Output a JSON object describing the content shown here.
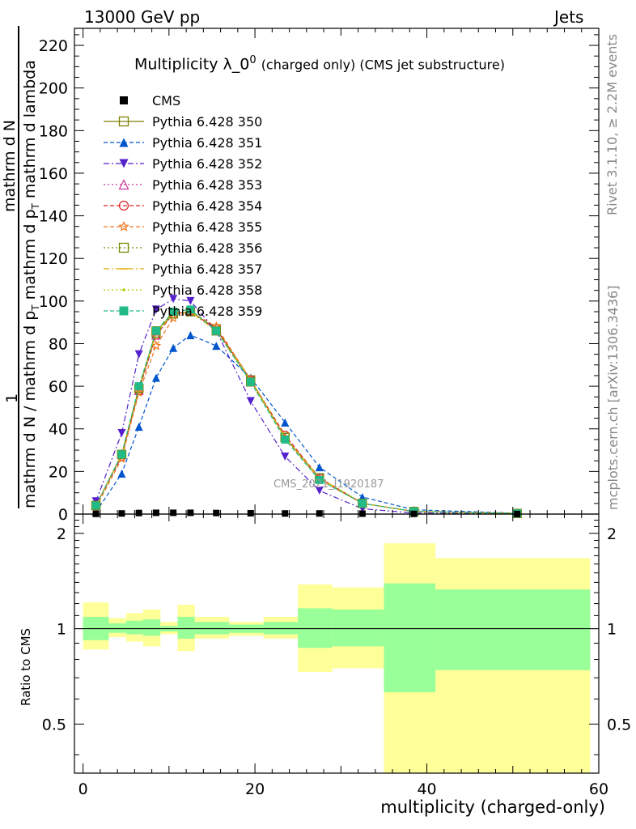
{
  "header": {
    "left": "13000 GeV pp",
    "right": "Jets"
  },
  "side_labels": {
    "rivet": "Rivet 3.1.10, ≥ 2.2M events",
    "mcplots": "mcplots.cern.ch [arXiv:1306.3436]"
  },
  "titles": {
    "plot_main": "Multiplicity λ_0",
    "plot_sup": "0",
    "plot_small": "(charged only) (CMS jet substructure)",
    "y_upper_num": "1",
    "y_upper_den": "mathrm d N / mathrm d p",
    "y_upper_den_tail": "mathrm d p",
    "y_upper_den_sub": "T",
    "y_upper_den_end": "mathrm d lambda",
    "y_upper_line2a": "mathrm d",
    "y_upper_line2b": "N",
    "y_ratio": "Ratio to CMS",
    "x_axis": "multiplicity (charged-only)",
    "ref_name": "CMS_2021_I1920187"
  },
  "chart_data": {
    "type": "line",
    "x_range": [
      -1,
      60
    ],
    "upper_ylim": [
      0,
      228
    ],
    "ratio_ylim": [
      0.35,
      2.3
    ],
    "ratio_log_scale": true,
    "x_ticks": [
      0,
      20,
      40,
      60
    ],
    "upper_y_ticks": [
      0,
      20,
      40,
      60,
      80,
      100,
      120,
      140,
      160,
      180,
      200,
      220
    ],
    "ratio_y_ticks": [
      0.5,
      1,
      2
    ],
    "legend_position": "top-left",
    "x": [
      1.5,
      4.5,
      6.5,
      8.5,
      10.5,
      12.5,
      15.5,
      19.5,
      23.5,
      27.5,
      32.5,
      38.5,
      50.5
    ],
    "bin_edges": [
      0,
      3,
      5,
      7,
      9,
      11,
      13,
      17,
      21,
      25,
      29,
      35,
      41,
      59
    ],
    "reference": {
      "name": "CMS",
      "color": "#000000",
      "values": [
        0.1,
        0.3,
        0.5,
        0.6,
        0.6,
        0.6,
        0.5,
        0.4,
        0.3,
        0.3,
        0.2,
        0.1,
        0.05
      ]
    },
    "series": [
      {
        "name": "Pythia 6.428 350",
        "color": "#808000",
        "marker": "square-open",
        "dash": "solid",
        "values": [
          4,
          28,
          59,
          86,
          94,
          95,
          87,
          63,
          36,
          17,
          5,
          1.2,
          0.3
        ]
      },
      {
        "name": "Pythia 6.428 351",
        "color": "#0055cc",
        "marker": "triangle-up",
        "dash": "dash",
        "values": [
          1,
          19,
          41,
          64,
          78,
          84,
          79,
          64,
          43,
          22,
          8,
          2,
          0.4
        ]
      },
      {
        "name": "Pythia 6.428 352",
        "color": "#5522cc",
        "marker": "triangle-down",
        "dash": "dashdot",
        "values": [
          6,
          38,
          75,
          96,
          101,
          100,
          86,
          53,
          27,
          11,
          2.5,
          0.5,
          0.1
        ]
      },
      {
        "name": "Pythia 6.428 353",
        "color": "#cc3399",
        "marker": "triangle-up-open",
        "dash": "dot",
        "values": [
          4,
          28,
          58,
          84,
          94,
          95,
          86,
          63,
          36,
          17,
          5,
          1.2,
          0.3
        ]
      },
      {
        "name": "Pythia 6.428 354",
        "color": "#dd2222",
        "marker": "circle-open",
        "dash": "dash",
        "values": [
          4,
          27,
          58,
          84,
          94,
          95,
          87,
          63,
          37,
          17,
          5,
          1.2,
          0.3
        ]
      },
      {
        "name": "Pythia 6.428 355",
        "color": "#ee7722",
        "marker": "star-open",
        "dash": "dash",
        "values": [
          3,
          26,
          57,
          79,
          92,
          95,
          88,
          63,
          36,
          16,
          5,
          1.2,
          0.3
        ]
      },
      {
        "name": "Pythia 6.428 356",
        "color": "#778800",
        "marker": "square-open",
        "dash": "dot",
        "values": [
          4,
          28,
          59,
          85,
          94,
          95,
          86,
          62,
          36,
          17,
          5,
          1.2,
          0.3
        ]
      },
      {
        "name": "Pythia 6.428 357",
        "color": "#ddaa00",
        "marker": "dash",
        "dash": "dashdot",
        "values": [
          4,
          28,
          59,
          85,
          94,
          95,
          86,
          63,
          36,
          17,
          5,
          1.2,
          0.3
        ]
      },
      {
        "name": "Pythia 6.428 358",
        "color": "#aacc00",
        "marker": "dot",
        "dash": "dot",
        "values": [
          4,
          28,
          59,
          85,
          94,
          95,
          86,
          63,
          36,
          17,
          5,
          1.2,
          0.3
        ]
      },
      {
        "name": "Pythia 6.428 359",
        "color": "#22bb88",
        "marker": "square-filled",
        "dash": "dash",
        "values": [
          4,
          28,
          60,
          86,
          95,
          96,
          86,
          62,
          35,
          16,
          5,
          1.2,
          0.3
        ]
      }
    ],
    "ratio_band": {
      "inner_color": "#99ff99",
      "outer_color": "#ffff99",
      "inner": [
        [
          0.92,
          1.09
        ],
        [
          0.97,
          1.04
        ],
        [
          0.96,
          1.06
        ],
        [
          0.95,
          1.07
        ],
        [
          0.98,
          1.02
        ],
        [
          0.93,
          1.09
        ],
        [
          0.96,
          1.05
        ],
        [
          0.97,
          1.03
        ],
        [
          0.96,
          1.05
        ],
        [
          0.87,
          1.16
        ],
        [
          0.88,
          1.15
        ],
        [
          0.63,
          1.39
        ],
        [
          0.74,
          1.33
        ]
      ],
      "outer": [
        [
          0.86,
          1.21
        ],
        [
          0.94,
          1.08
        ],
        [
          0.91,
          1.12
        ],
        [
          0.88,
          1.15
        ],
        [
          0.96,
          1.05
        ],
        [
          0.85,
          1.19
        ],
        [
          0.93,
          1.09
        ],
        [
          0.95,
          1.05
        ],
        [
          0.93,
          1.09
        ],
        [
          0.73,
          1.38
        ],
        [
          0.75,
          1.35
        ],
        [
          0.35,
          1.86
        ],
        [
          0.35,
          1.67
        ]
      ]
    }
  }
}
